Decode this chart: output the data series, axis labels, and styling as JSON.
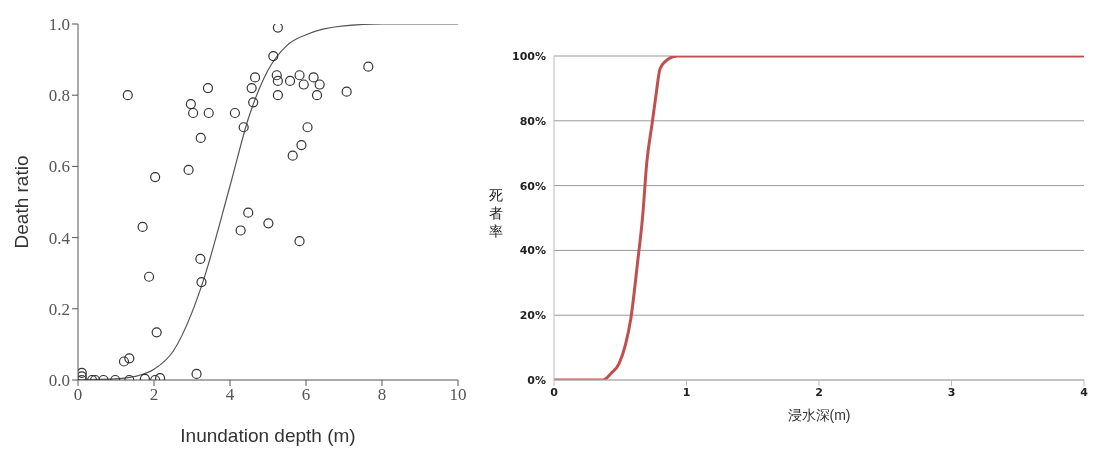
{
  "chart_data": [
    {
      "type": "scatter",
      "xlabel": "Inundation depth (m)",
      "ylabel": "Death ratio",
      "xlim": [
        0,
        10
      ],
      "xticks": [
        0,
        2,
        4,
        6,
        8,
        10
      ],
      "ylim": [
        0,
        1
      ],
      "yticks": [
        {
          "value": 0,
          "label": "0.0"
        },
        {
          "value": 0.2,
          "label": "0.2"
        },
        {
          "value": 0.4,
          "label": "0.4"
        },
        {
          "value": 0.6,
          "label": "0.6"
        },
        {
          "value": 0.8,
          "label": "0.8"
        },
        {
          "value": 1,
          "label": "1.0"
        }
      ],
      "series": [
        {
          "marker": "circle",
          "color": "#333333",
          "x": [
            0.1,
            0.1,
            0.1,
            0.37,
            0.45,
            0.67,
            0.98,
            1.35,
            1.76,
            2.03,
            2.16,
            1.21,
            1.35,
            3.12,
            2.07,
            3.25,
            1.87,
            3.22,
            1.7,
            2.03,
            2.91,
            3.23,
            3.03,
            3.44,
            2.97,
            3.42,
            1.31,
            5.26,
            5.14,
            7.64,
            5.23,
            5.26,
            4.66,
            4.57,
            5.58,
            5.83,
            5.94,
            6.2,
            6.36,
            6.29,
            5.26,
            7.07,
            4.61,
            4.13,
            4.36,
            6.04,
            5.88,
            5.65,
            4.48,
            5.01,
            4.28,
            5.83
          ],
          "values": [
            0,
            0.01,
            0.02,
            0,
            0,
            0,
            0,
            0,
            0.003,
            0,
            0.005,
            0.052,
            0.061,
            0.017,
            0.134,
            0.275,
            0.29,
            0.34,
            0.43,
            0.57,
            0.59,
            0.68,
            0.75,
            0.75,
            0.775,
            0.82,
            0.8,
            0.99,
            0.91,
            0.88,
            0.856,
            0.84,
            0.85,
            0.82,
            0.84,
            0.856,
            0.83,
            0.85,
            0.83,
            0.8,
            0.8,
            0.81,
            0.78,
            0.75,
            0.71,
            0.71,
            0.66,
            0.63,
            0.47,
            0.44,
            0.42,
            0.39
          ]
        },
        {
          "type": "line",
          "color": "#555555",
          "x": [
            0,
            1,
            1.5,
            2,
            2.5,
            3,
            3.3,
            4,
            4.5,
            5,
            5.5,
            6,
            7,
            8,
            9,
            10
          ],
          "values": [
            0,
            0.003,
            0.01,
            0.03,
            0.08,
            0.19,
            0.28,
            0.545,
            0.74,
            0.87,
            0.94,
            0.97,
            0.995,
            1,
            1,
            1
          ]
        }
      ]
    },
    {
      "type": "line",
      "xlabel": "浸水深(m)",
      "ylabel": "死者率",
      "xlim": [
        0,
        4
      ],
      "xticks": [
        0,
        1,
        2,
        3,
        4
      ],
      "ylim": [
        0,
        100
      ],
      "yticks": [
        {
          "value": 0,
          "label": "0%"
        },
        {
          "value": 20,
          "label": "20%"
        },
        {
          "value": 40,
          "label": "40%"
        },
        {
          "value": 60,
          "label": "60%"
        },
        {
          "value": 80,
          "label": "80%"
        },
        {
          "value": 100,
          "label": "100%"
        }
      ],
      "grid": "y",
      "series": [
        {
          "color": "#c0504d",
          "x": [
            0,
            0.37,
            0.43,
            0.49,
            0.54,
            0.58,
            0.63,
            0.67,
            0.7,
            0.74,
            0.77,
            0.8,
            0.86,
            0.93,
            1.5,
            2,
            3,
            4
          ],
          "values": [
            0,
            0,
            2,
            5,
            11,
            19,
            36,
            51,
            67,
            79,
            88,
            96,
            99,
            100,
            100,
            100,
            100,
            100
          ]
        }
      ]
    }
  ]
}
